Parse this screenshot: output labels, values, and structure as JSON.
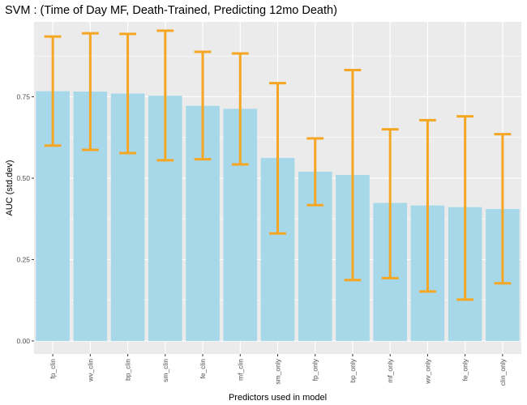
{
  "chart_data": {
    "type": "bar",
    "title": "SVM : (Time of Day MF, Death-Trained, Predicting 12mo Death)",
    "xlabel": "Predictors used in model",
    "ylabel": "AUC (std.dev)",
    "categories": [
      "fp_clin",
      "wv_clin",
      "bp_clin",
      "sm_clin",
      "fe_clin",
      "mf_clin",
      "sm_only",
      "fp_only",
      "bp_only",
      "mf_only",
      "wv_only",
      "fe_only",
      "clin_only"
    ],
    "values": [
      0.767,
      0.766,
      0.76,
      0.753,
      0.722,
      0.713,
      0.562,
      0.52,
      0.51,
      0.424,
      0.416,
      0.411,
      0.405
    ],
    "error_low": [
      0.6,
      0.587,
      0.577,
      0.555,
      0.558,
      0.542,
      0.33,
      0.417,
      0.187,
      0.193,
      0.152,
      0.127,
      0.177
    ],
    "error_high": [
      0.935,
      0.945,
      0.943,
      0.953,
      0.888,
      0.883,
      0.792,
      0.622,
      0.832,
      0.65,
      0.678,
      0.69,
      0.635
    ],
    "ylim": [
      -0.04,
      0.98
    ],
    "yticks": [
      0.0,
      0.25,
      0.5,
      0.75
    ],
    "ytick_labels": [
      "0.00",
      "0.25",
      "0.50",
      "0.75"
    ],
    "grid": true,
    "colors": {
      "bar": "#a6d8ea",
      "errorbar": "#f5a623",
      "panel": "#ebebeb",
      "grid": "#ffffff"
    }
  }
}
